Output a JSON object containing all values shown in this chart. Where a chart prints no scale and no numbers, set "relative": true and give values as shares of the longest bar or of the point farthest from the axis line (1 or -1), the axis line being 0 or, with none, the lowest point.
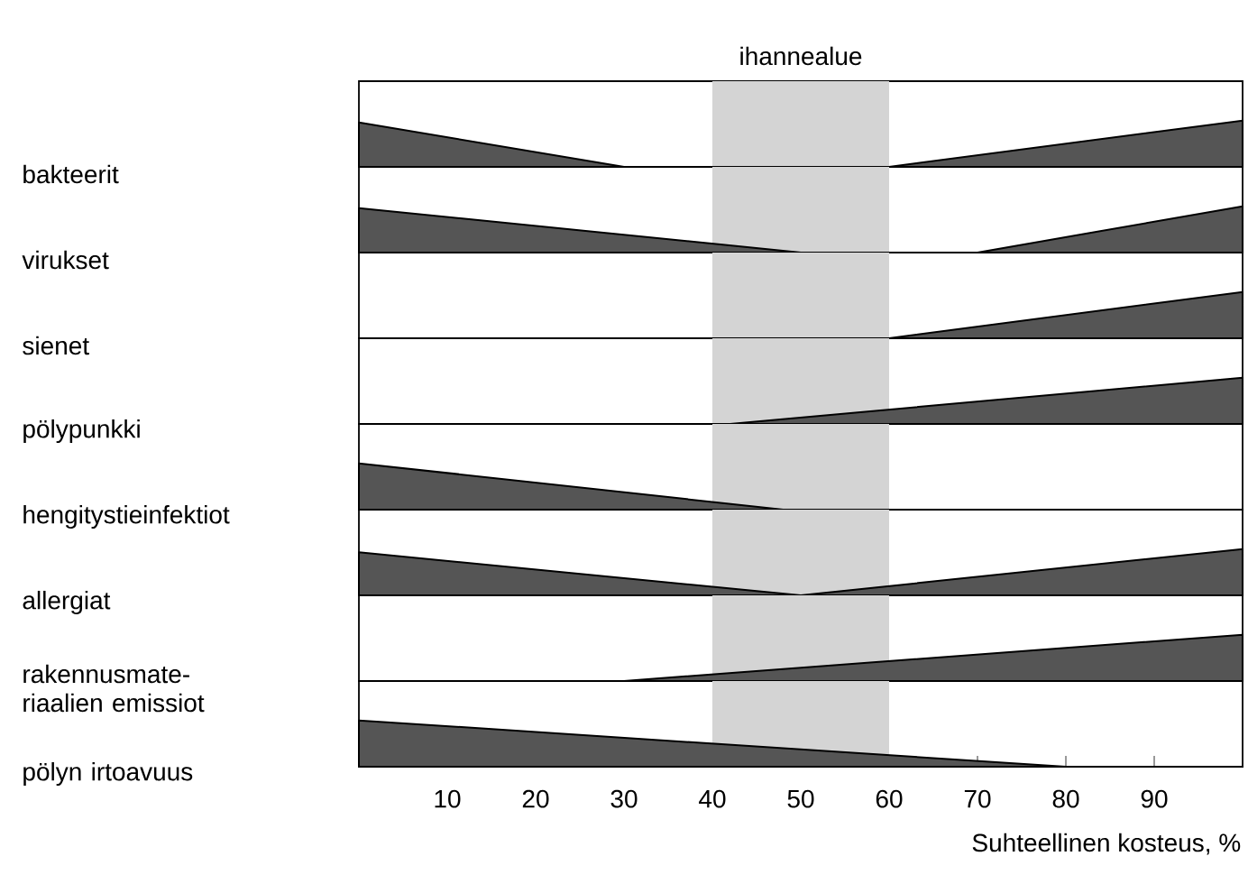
{
  "chart_data": [
    {
      "type": "area",
      "ylabel": "bakteerit",
      "relative": true,
      "color": "#555555",
      "x": [
        0,
        30,
        60,
        100
      ],
      "values": [
        0.96,
        0,
        0,
        1
      ],
      "xlim": [
        0,
        100
      ],
      "tick_labels": false,
      "bands": [
        {
          "axis": "x",
          "from": 40,
          "to": 60,
          "label": "ihannealue",
          "color": "#d4d4d4"
        }
      ]
    },
    {
      "type": "area",
      "ylabel": "virukset",
      "relative": true,
      "color": "#555555",
      "x": [
        0,
        50,
        70,
        100
      ],
      "values": [
        0.96,
        0,
        0,
        1
      ],
      "xlim": [
        0,
        100
      ],
      "tick_labels": false,
      "bands": [
        {
          "axis": "x",
          "from": 40,
          "to": 60,
          "color": "#d4d4d4"
        }
      ]
    },
    {
      "type": "area",
      "ylabel": "sienet",
      "relative": true,
      "color": "#555555",
      "x": [
        0,
        60,
        100
      ],
      "values": [
        0,
        0,
        1
      ],
      "xlim": [
        0,
        100
      ],
      "tick_labels": false,
      "bands": [
        {
          "axis": "x",
          "from": 40,
          "to": 60,
          "color": "#d4d4d4"
        }
      ]
    },
    {
      "type": "area",
      "ylabel": "pölypunkki",
      "relative": true,
      "color": "#555555",
      "x": [
        0,
        42,
        100
      ],
      "values": [
        0,
        0,
        1
      ],
      "xlim": [
        0,
        100
      ],
      "tick_labels": false,
      "bands": [
        {
          "axis": "x",
          "from": 40,
          "to": 60,
          "color": "#d4d4d4"
        }
      ]
    },
    {
      "type": "area",
      "ylabel": "hengitystieinfektiot",
      "relative": true,
      "color": "#555555",
      "x": [
        0,
        48,
        100
      ],
      "values": [
        1,
        0,
        0
      ],
      "xlim": [
        0,
        100
      ],
      "tick_labels": false,
      "bands": [
        {
          "axis": "x",
          "from": 40,
          "to": 60,
          "color": "#d4d4d4"
        }
      ]
    },
    {
      "type": "area",
      "ylabel": "allergiat",
      "relative": true,
      "color": "#555555",
      "x": [
        0,
        50,
        100
      ],
      "values": [
        0.93,
        0,
        1
      ],
      "xlim": [
        0,
        100
      ],
      "tick_labels": false,
      "bands": [
        {
          "axis": "x",
          "from": 40,
          "to": 60,
          "color": "#d4d4d4"
        }
      ]
    },
    {
      "type": "area",
      "ylabel": "rakennusmate- riaalien emissiot",
      "relative": true,
      "color": "#555555",
      "x": [
        0,
        30,
        100
      ],
      "values": [
        0,
        0,
        1
      ],
      "xlim": [
        0,
        100
      ],
      "tick_labels": false,
      "bands": [
        {
          "axis": "x",
          "from": 40,
          "to": 60,
          "color": "#d4d4d4"
        }
      ]
    },
    {
      "type": "area",
      "ylabel": "pölyn irtoavuus",
      "relative": true,
      "color": "#555555",
      "x": [
        0,
        80,
        100
      ],
      "values": [
        1,
        0,
        0
      ],
      "xlim": [
        0,
        100
      ],
      "tick_labels": "x",
      "xticks": [
        10,
        20,
        30,
        40,
        50,
        60,
        70,
        80,
        90
      ],
      "xlabel": "Suhteellinen kosteus, %",
      "bands": [
        {
          "axis": "x",
          "from": 40,
          "to": 60,
          "color": "#d4d4d4"
        }
      ]
    }
  ]
}
